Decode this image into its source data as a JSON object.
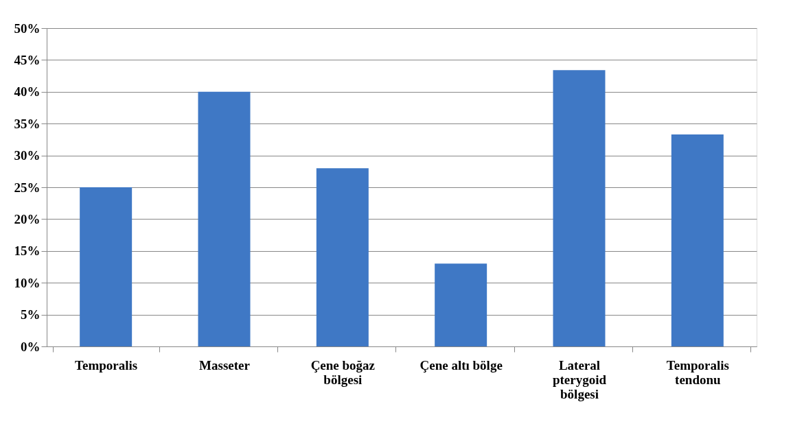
{
  "chart_data": {
    "type": "bar",
    "categories": [
      "Temporalis",
      "Masseter",
      "Çene boğaz\nbölgesi",
      "Çene altı bölge",
      "Lateral\npterygoid\nbölgesi",
      "Temporalis\ntendonu"
    ],
    "values": [
      25,
      40,
      28,
      13,
      43.4,
      33.3
    ],
    "color": "#3f78c5",
    "ylim": [
      0,
      50
    ],
    "yticks": [
      {
        "value": 0,
        "label": "0%"
      },
      {
        "value": 5,
        "label": "5%"
      },
      {
        "value": 10,
        "label": "10%"
      },
      {
        "value": 15,
        "label": "15%"
      },
      {
        "value": 20,
        "label": "20%"
      },
      {
        "value": 25,
        "label": "25%"
      },
      {
        "value": 30,
        "label": "30%"
      },
      {
        "value": 35,
        "label": "35%"
      },
      {
        "value": 40,
        "label": "40%"
      },
      {
        "value": 45,
        "label": "45%"
      },
      {
        "value": 50,
        "label": "50%"
      }
    ],
    "grid": "y"
  }
}
